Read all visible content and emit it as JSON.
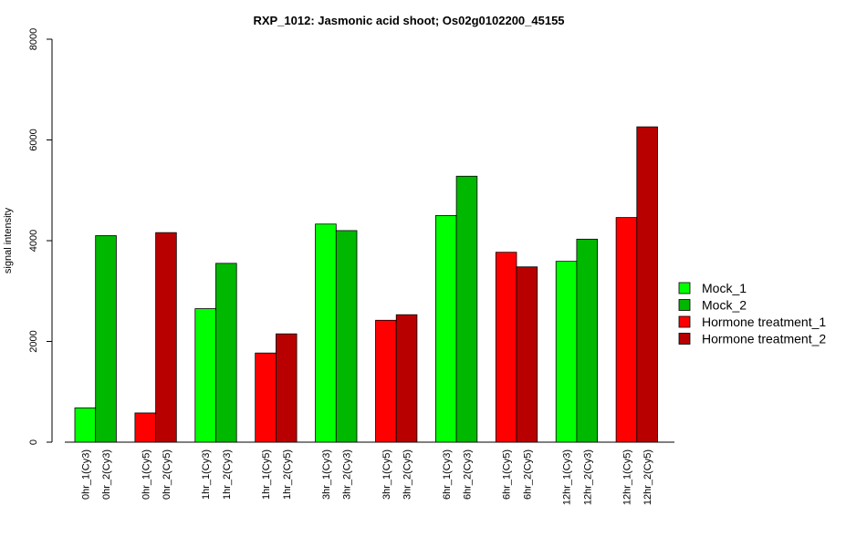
{
  "chart_data": {
    "type": "bar",
    "title": "RXP_1012: Jasmonic acid shoot; Os02g0102200_45155",
    "ylabel": "signal intensity",
    "xlabel": "",
    "ylim": [
      0,
      8000
    ],
    "yticks": [
      0,
      2000,
      4000,
      6000,
      8000
    ],
    "grid": false,
    "legend_position": "right",
    "categories": [
      "0hr_1(Cy3)",
      "0hr_2(Cy3)",
      "0hr_1(Cy5)",
      "0hr_2(Cy5)",
      "1hr_1(Cy3)",
      "1hr_2(Cy3)",
      "1hr_1(Cy5)",
      "1hr_2(Cy5)",
      "3hr_1(Cy3)",
      "3hr_2(Cy3)",
      "3hr_1(Cy5)",
      "3hr_2(Cy5)",
      "6hr_1(Cy3)",
      "6hr_2(Cy3)",
      "6hr_1(Cy5)",
      "6hr_2(Cy5)",
      "12hr_1(Cy3)",
      "12hr_2(Cy3)",
      "12hr_1(Cy5)",
      "12hr_2(Cy5)"
    ],
    "values": [
      680,
      4100,
      580,
      4160,
      2650,
      3550,
      1770,
      2150,
      4330,
      4200,
      2420,
      2530,
      4500,
      5280,
      3770,
      3480,
      3590,
      4030,
      4460,
      6260
    ],
    "bar_series": [
      0,
      1,
      2,
      3,
      0,
      1,
      2,
      3,
      0,
      1,
      2,
      3,
      0,
      1,
      2,
      3,
      0,
      1,
      2,
      3
    ],
    "series": [
      {
        "name": "Mock_1",
        "color": "#00ff00"
      },
      {
        "name": "Mock_2",
        "color": "#00b800"
      },
      {
        "name": "Hormone treatment_1",
        "color": "#ff0000"
      },
      {
        "name": "Hormone treatment_2",
        "color": "#b80000"
      }
    ]
  }
}
